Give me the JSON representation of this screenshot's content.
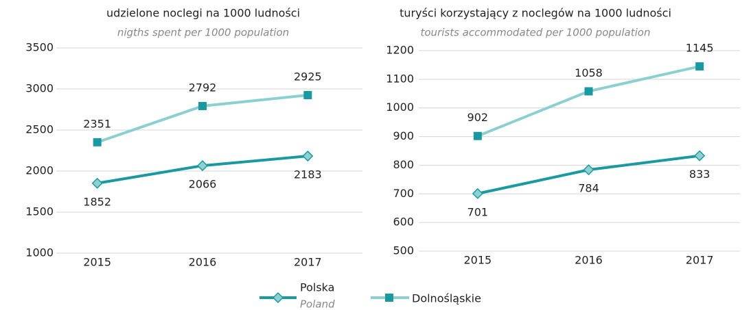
{
  "chart_data": [
    {
      "type": "line",
      "title": "udzielone noclegi na 1000 ludności",
      "subtitle": "nigths spent per 1000 population",
      "categories": [
        "2015",
        "2016",
        "2017"
      ],
      "ylim": [
        1000,
        3500
      ],
      "yticks": [
        1000,
        1500,
        2000,
        2500,
        3000,
        3500
      ],
      "grid": true,
      "series": [
        {
          "name": "Polska",
          "name_en": "Poland",
          "color": "#1a9aa0",
          "marker": "diamond",
          "marker_color": "#8fd0d0",
          "values": [
            1852,
            2066,
            2183
          ]
        },
        {
          "name": "Dolnośląskie",
          "color": "#8ccfd0",
          "marker": "square",
          "marker_color": "#1a9aa0",
          "values": [
            2351,
            2792,
            2925
          ]
        }
      ]
    },
    {
      "type": "line",
      "title": "turyści korzystający z noclegów na 1000 ludności",
      "subtitle": "tourists accommodated per 1000 population",
      "categories": [
        "2015",
        "2016",
        "2017"
      ],
      "ylim": [
        500,
        1200
      ],
      "yticks": [
        500,
        600,
        700,
        800,
        900,
        1000,
        1100,
        1200
      ],
      "grid": true,
      "series": [
        {
          "name": "Polska",
          "color": "#1a9aa0",
          "marker": "diamond",
          "marker_color": "#8fd0d0",
          "values": [
            701,
            784,
            833
          ]
        },
        {
          "name": "Dolnośląskie",
          "color": "#8ccfd0",
          "marker": "square",
          "marker_color": "#1a9aa0",
          "values": [
            902,
            1058,
            1145
          ]
        }
      ]
    }
  ]
}
